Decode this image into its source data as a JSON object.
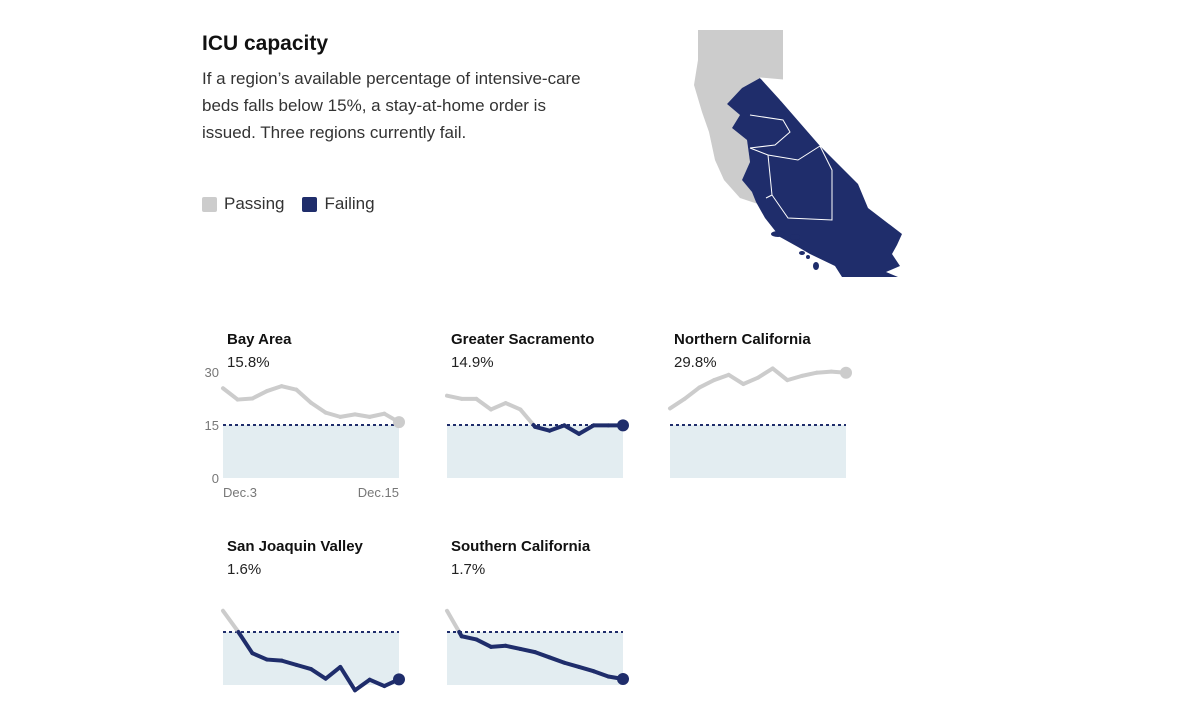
{
  "title": "ICU capacity",
  "description": "If a region’s available percentage of intensive-care beds falls below 15%, a stay-at-home order is issued. Three regions currently fail.",
  "legend": {
    "passing_label": "Passing",
    "failing_label": "Failing",
    "passing_color": "#cccccc",
    "failing_color": "#1f2d6b"
  },
  "colors": {
    "threshold_fill": "#e3edf1",
    "threshold_line": "#1f2d6b"
  },
  "chart_data": [
    {
      "type": "line",
      "region": "Bay Area",
      "value_label": "15.8%",
      "ylim": [
        0,
        30
      ],
      "yticks": [
        "30",
        "15",
        "0"
      ],
      "xticks": [
        "Dec.3",
        "Dec.15"
      ],
      "threshold": 15,
      "values": [
        25.4,
        22.2,
        22.5,
        24.6,
        26.0,
        25.0,
        21.3,
        18.5,
        17.3,
        18.0,
        17.3,
        18.2,
        15.8
      ]
    },
    {
      "type": "line",
      "region": "Greater Sacramento",
      "value_label": "14.9%",
      "ylim": [
        0,
        30
      ],
      "threshold": 15,
      "values": [
        23.3,
        22.4,
        22.4,
        19.4,
        21.2,
        19.4,
        14.5,
        13.4,
        14.9,
        12.5,
        14.9,
        14.9,
        14.9
      ]
    },
    {
      "type": "line",
      "region": "Northern California",
      "value_label": "29.8%",
      "ylim": [
        0,
        30
      ],
      "threshold": 15,
      "values": [
        19.7,
        22.4,
        25.6,
        27.7,
        29.2,
        26.6,
        28.4,
        31.0,
        27.7,
        28.9,
        29.8,
        30.1,
        29.8
      ]
    },
    {
      "type": "line",
      "region": "San Joaquin Valley",
      "value_label": "1.6%",
      "ylim": [
        0,
        30
      ],
      "threshold": 15,
      "values": [
        21.0,
        15.3,
        9.0,
        7.2,
        6.9,
        5.7,
        4.5,
        1.8,
        5.1,
        -1.5,
        1.5,
        -0.3,
        1.6
      ]
    },
    {
      "type": "line",
      "region": "Southern California",
      "value_label": "1.7%",
      "ylim": [
        0,
        30
      ],
      "threshold": 15,
      "values": [
        21.0,
        13.8,
        12.9,
        10.8,
        11.1,
        10.2,
        9.3,
        7.8,
        6.3,
        5.1,
        3.9,
        2.4,
        1.7
      ]
    }
  ]
}
